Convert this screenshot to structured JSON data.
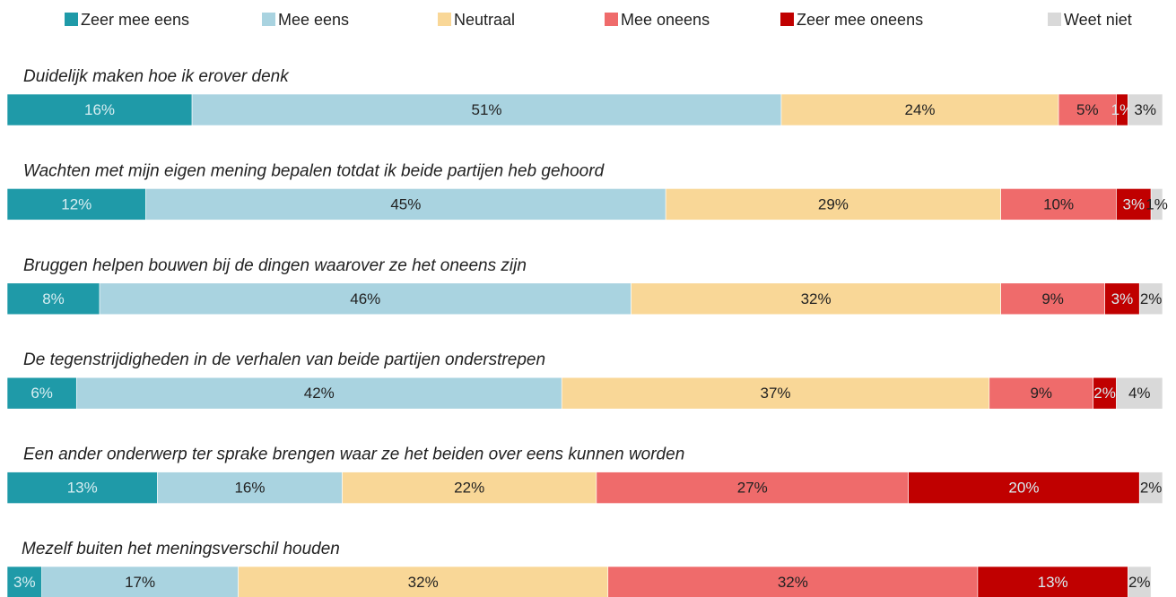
{
  "chart_data": {
    "type": "bar",
    "orientation": "horizontal",
    "stacked": true,
    "categories": [
      "Duidelijk maken hoe ik erover denk",
      "Wachten met mijn eigen mening bepalen totdat ik beide partijen heb gehoord",
      "Bruggen helpen bouwen bij de dingen waarover ze het oneens zijn",
      "De tegenstrijdigheden in de verhalen van beide partijen onderstrepen",
      "Een ander onderwerp ter sprake brengen waar ze het beiden over eens kunnen worden",
      "Mezelf buiten het meningsverschil houden"
    ],
    "series": [
      {
        "name": "Zeer mee eens",
        "color": "#1f9aa8",
        "values": [
          16,
          12,
          8,
          6,
          13,
          3
        ],
        "value_labels": [
          "16%",
          "12%",
          "8%",
          "6%",
          "13%",
          "3%"
        ]
      },
      {
        "name": "Mee eens",
        "color": "#a9d3e0",
        "values": [
          51,
          45,
          46,
          42,
          16,
          17
        ],
        "value_labels": [
          "51%",
          "45%",
          "46%",
          "42%",
          "16%",
          "17%"
        ]
      },
      {
        "name": "Neutraal",
        "color": "#f9d797",
        "values": [
          24,
          29,
          32,
          37,
          22,
          32
        ],
        "value_labels": [
          "24%",
          "29%",
          "32%",
          "37%",
          "22%",
          "32%"
        ]
      },
      {
        "name": "Mee oneens",
        "color": "#ef6b6b",
        "values": [
          5,
          10,
          9,
          9,
          27,
          32
        ],
        "value_labels": [
          "5%",
          "10%",
          "9%",
          "9%",
          "27%",
          "32%"
        ]
      },
      {
        "name": "Zeer mee oneens",
        "color": "#c00000",
        "values": [
          1,
          3,
          3,
          2,
          20,
          13
        ],
        "value_labels": [
          "1%",
          "3%",
          "3%",
          "2%",
          "20%",
          "13%"
        ]
      },
      {
        "name": "Weet niet",
        "color": "#d9d9d9",
        "values": [
          3,
          1,
          2,
          4,
          2,
          2
        ],
        "value_labels": [
          "3%",
          "1%",
          "2%",
          "4%",
          "2%",
          "2%"
        ]
      }
    ],
    "xlim": [
      0,
      100
    ],
    "legend": "top"
  }
}
